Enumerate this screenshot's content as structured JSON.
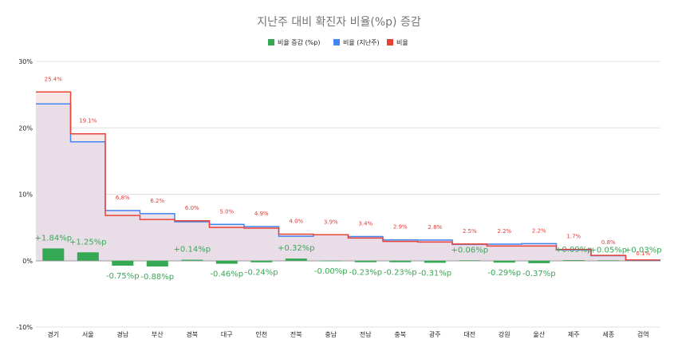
{
  "chart_data": {
    "type": "bar",
    "title": "지난주 대비 확진자 비율(%p) 증감",
    "legend": [
      {
        "name": "비율 증감 (%p)",
        "color": "#34a853"
      },
      {
        "name": "비율 (지난주)",
        "color": "#4285f4"
      },
      {
        "name": "비율",
        "color": "#ea4335"
      }
    ],
    "legend_position": "top-center",
    "y_ticks": [
      "30%",
      "20%",
      "10%",
      "0%",
      "-10%"
    ],
    "y_tick_values": [
      30,
      20,
      10,
      0,
      -10
    ],
    "ylim": [
      -10,
      30
    ],
    "categories": [
      "경기",
      "서울",
      "경남",
      "부산",
      "경북",
      "대구",
      "인천",
      "전북",
      "충남",
      "전남",
      "충북",
      "광주",
      "대전",
      "강원",
      "울산",
      "제주",
      "세종",
      "검역"
    ],
    "series": [
      {
        "name": "비율 증감 (%p)",
        "type": "bar",
        "values": [
          1.84,
          1.25,
          -0.75,
          -0.88,
          0.14,
          -0.46,
          -0.24,
          0.32,
          -0.005,
          -0.23,
          -0.23,
          -0.31,
          0.06,
          -0.29,
          -0.37,
          0.09,
          0.05,
          0.03
        ],
        "labels": [
          "+1.84%p",
          "+1.25%p",
          "-0.75%p",
          "-0.88%p",
          "+0.14%p",
          "-0.46%p",
          "-0.24%p",
          "+0.32%p",
          "-0.00%p",
          "-0.23%p",
          "-0.23%p",
          "-0.31%p",
          "+0.06%p",
          "-0.29%p",
          "-0.37%p",
          "+0.09%p",
          "+0.05%p",
          "+0.03%p"
        ]
      },
      {
        "name": "비율 (지난주)",
        "type": "step",
        "values": [
          23.6,
          17.9,
          7.55,
          7.08,
          5.86,
          5.46,
          5.14,
          3.68,
          3.9,
          3.63,
          3.13,
          3.11,
          2.44,
          2.49,
          2.57,
          1.61,
          0.75,
          0.07
        ]
      },
      {
        "name": "비율",
        "type": "step",
        "values": [
          25.4,
          19.1,
          6.8,
          6.2,
          6.0,
          5.0,
          4.9,
          4.0,
          3.9,
          3.4,
          2.9,
          2.8,
          2.5,
          2.2,
          2.2,
          1.7,
          0.8,
          0.1
        ],
        "labels": [
          "25.4%",
          "19.1%",
          "6.8%",
          "6.2%",
          "6.0%",
          "5.0%",
          "4.9%",
          "4.0%",
          "3.9%",
          "3.4%",
          "2.9%",
          "2.8%",
          "2.5%",
          "2.2%",
          "2.2%",
          "1.7%",
          "0.8%",
          "0.1%"
        ]
      }
    ],
    "xlabel": "",
    "ylabel": ""
  }
}
